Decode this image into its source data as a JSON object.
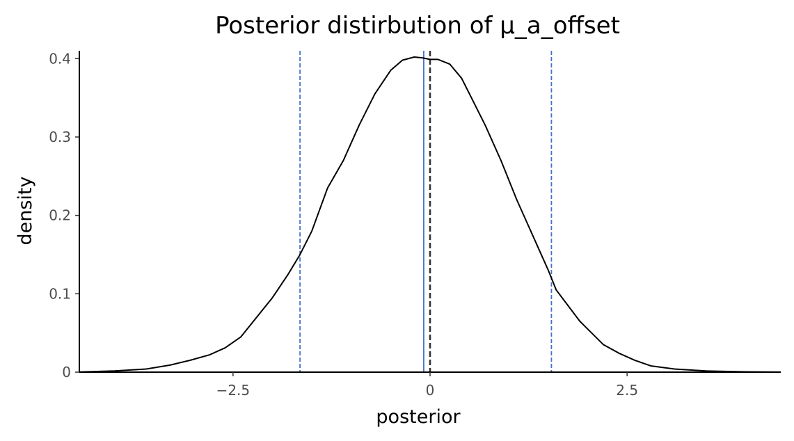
{
  "chart_data": {
    "type": "line",
    "title": "Posterior distirbution of μ_a_offset",
    "xlabel": "posterior",
    "ylabel": "density",
    "xlim": [
      -4.45,
      4.45
    ],
    "ylim": [
      0,
      0.41
    ],
    "x_ticks": [
      {
        "value": -2.5,
        "label": "−2.5"
      },
      {
        "value": 0,
        "label": "0"
      },
      {
        "value": 2.5,
        "label": "2.5"
      }
    ],
    "y_ticks": [
      {
        "value": 0,
        "label": "0"
      },
      {
        "value": 0.1,
        "label": "0.1"
      },
      {
        "value": 0.2,
        "label": "0.2"
      },
      {
        "value": 0.3,
        "label": "0.3"
      },
      {
        "value": 0.4,
        "label": "0.4"
      }
    ],
    "grid": false,
    "series": [
      {
        "color": "#000000",
        "x": [
          -4.45,
          -4.0,
          -3.6,
          -3.3,
          -3.05,
          -2.8,
          -2.6,
          -2.4,
          -2.2,
          -2.0,
          -1.8,
          -1.65,
          -1.5,
          -1.3,
          -1.1,
          -0.9,
          -0.7,
          -0.5,
          -0.35,
          -0.2,
          -0.1,
          0.0,
          0.1,
          0.25,
          0.4,
          0.5,
          0.7,
          0.9,
          1.1,
          1.3,
          1.5,
          1.6,
          1.75,
          1.9,
          2.05,
          2.2,
          2.4,
          2.6,
          2.8,
          3.1,
          3.5,
          4.0,
          4.45
        ],
        "y": [
          0.0002,
          0.0015,
          0.004,
          0.009,
          0.015,
          0.022,
          0.031,
          0.045,
          0.07,
          0.095,
          0.125,
          0.15,
          0.18,
          0.235,
          0.27,
          0.315,
          0.355,
          0.385,
          0.398,
          0.402,
          0.401,
          0.399,
          0.399,
          0.393,
          0.375,
          0.355,
          0.315,
          0.27,
          0.22,
          0.175,
          0.13,
          0.105,
          0.085,
          0.065,
          0.05,
          0.035,
          0.024,
          0.015,
          0.008,
          0.004,
          0.0015,
          0.0004,
          0.0001
        ]
      }
    ],
    "vlines": [
      {
        "x": -1.65,
        "style": "dashed",
        "color": "#4472c4"
      },
      {
        "x": -0.08,
        "style": "solid",
        "color": "#4472c4"
      },
      {
        "x": 1.54,
        "style": "dashed",
        "color": "#4472c4"
      },
      {
        "x": 0.0,
        "style": "dashed",
        "color": "#333333"
      }
    ]
  }
}
